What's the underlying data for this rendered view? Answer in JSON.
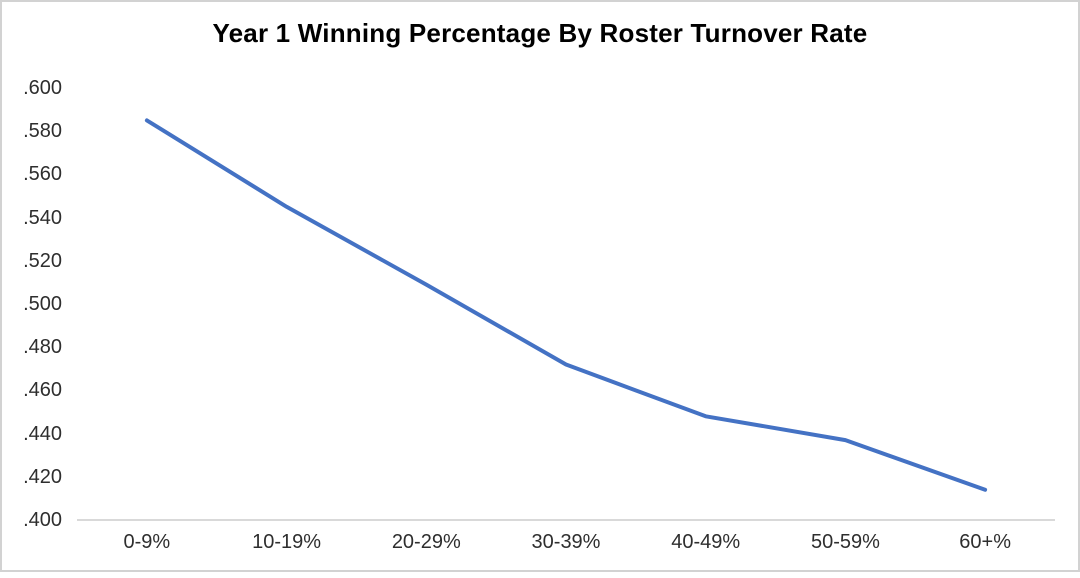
{
  "chart_data": {
    "type": "line",
    "title": "Year 1 Winning Percentage By Roster Turnover Rate",
    "categories": [
      "0-9%",
      "10-19%",
      "20-29%",
      "30-39%",
      "40-49%",
      "50-59%",
      "60+%"
    ],
    "values": [
      0.585,
      0.545,
      0.509,
      0.472,
      0.448,
      0.437,
      0.414
    ],
    "y_tick_labels": [
      ".400",
      ".420",
      ".440",
      ".460",
      ".480",
      ".500",
      ".520",
      ".540",
      ".560",
      ".580",
      ".600"
    ],
    "ylim": [
      0.4,
      0.6
    ],
    "y_tick_step": 0.02,
    "xlabel": "",
    "ylabel": "",
    "grid": false,
    "legend": "none",
    "line_color": "#4472C4",
    "axis_line_color": "#D9D9D9",
    "tick_label_color": "#2e2e2e",
    "title_color": "#000000",
    "background_color": "#FFFFFF"
  }
}
